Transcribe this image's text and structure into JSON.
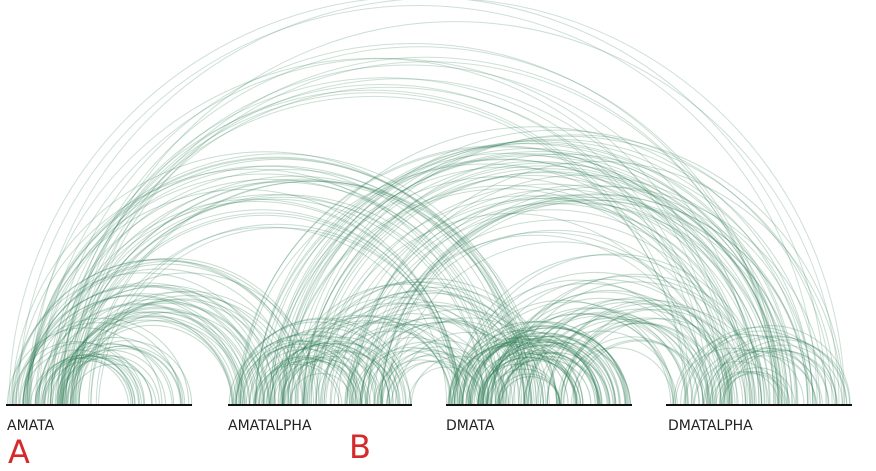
{
  "colors": {
    "arc": "#2f7d55",
    "axis": "#111111",
    "label": "#222222",
    "panel_letter": "#d42a2a"
  },
  "segments": [
    {
      "id": "amata",
      "label": "AMATA"
    },
    {
      "id": "amatalpha",
      "label": "AMATALPHA"
    },
    {
      "id": "dmata",
      "label": "DMATA"
    },
    {
      "id": "dmatalpha",
      "label": "DMATALPHA"
    }
  ],
  "panel_letters": [
    {
      "id": "a",
      "text": "A"
    },
    {
      "id": "b",
      "text": "B"
    }
  ]
}
